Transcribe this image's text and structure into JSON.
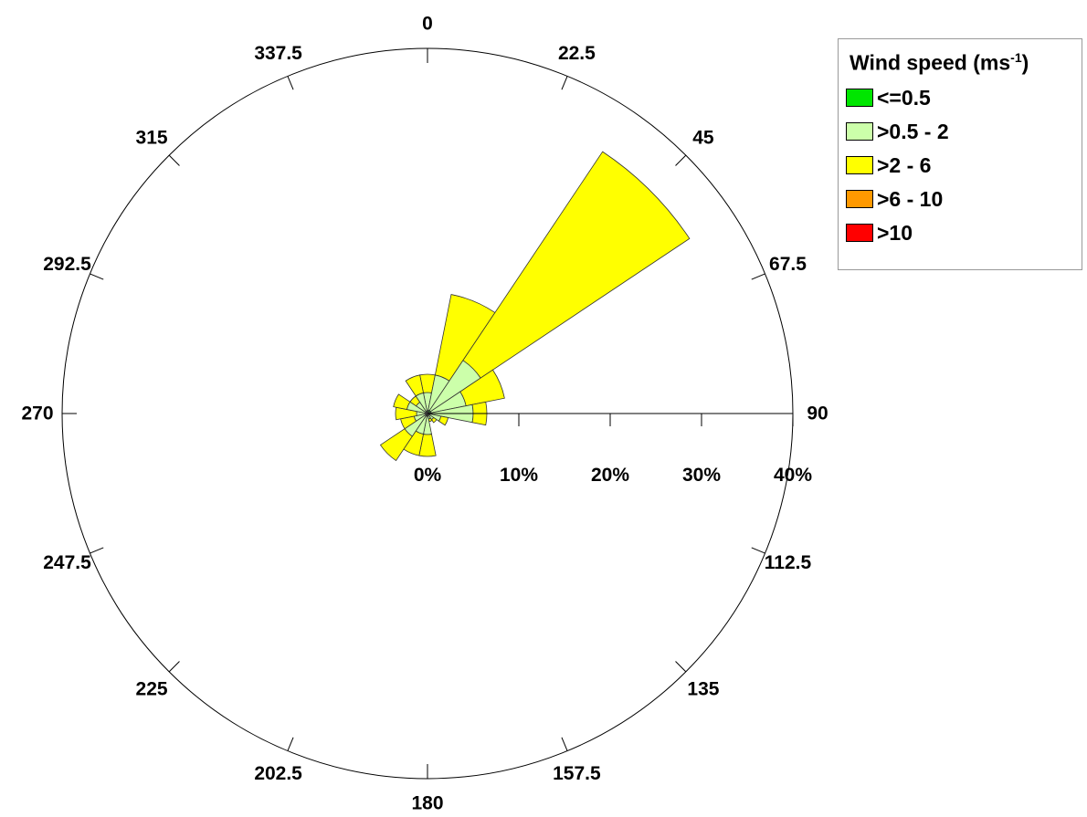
{
  "chart_data": {
    "type": "wind-rose",
    "legend": {
      "title": "Wind speed (ms",
      "title_sup": "-1",
      "title_close": ")",
      "placement": "top-right",
      "bins": [
        {
          "label": "<=0.5",
          "color": "#00e600"
        },
        {
          "label": ">0.5 - 2",
          "color": "#ccffaa"
        },
        {
          "label": ">2 - 6",
          "color": "#ffff00"
        },
        {
          "label": ">6 - 10",
          "color": "#ff9900"
        },
        {
          "label": ">10",
          "color": "#ff0000"
        }
      ]
    },
    "direction_labels": [
      "0",
      "22.5",
      "45",
      "67.5",
      "90",
      "112.5",
      "135",
      "157.5",
      "180",
      "202.5",
      "225",
      "247.5",
      "270",
      "292.5",
      "315",
      "337.5"
    ],
    "radial_axis": {
      "ticks": [
        "0%",
        "10%",
        "20%",
        "30%",
        "40%"
      ],
      "tick_values": [
        0,
        10,
        20,
        30,
        40
      ],
      "max": 40,
      "angle": 90
    },
    "sectors": [
      {
        "direction": 0,
        "cumulative": [
          0.3,
          2.3,
          4.3,
          4.3,
          4.3
        ]
      },
      {
        "direction": 22.5,
        "cumulative": [
          0.4,
          4.3,
          13.3,
          13.3,
          13.3
        ]
      },
      {
        "direction": 45,
        "cumulative": [
          0.4,
          7.0,
          34.5,
          34.5,
          34.5
        ]
      },
      {
        "direction": 67.5,
        "cumulative": [
          0.4,
          4.3,
          8.6,
          8.6,
          8.6
        ]
      },
      {
        "direction": 90,
        "cumulative": [
          0.3,
          5.0,
          6.5,
          6.5,
          6.5
        ]
      },
      {
        "direction": 112.5,
        "cumulative": [
          0.3,
          1.5,
          2.3,
          2.3,
          2.3
        ]
      },
      {
        "direction": 135,
        "cumulative": [
          0.2,
          0.8,
          1.2,
          1.2,
          1.2
        ]
      },
      {
        "direction": 157.5,
        "cumulative": [
          0.2,
          0.6,
          0.9,
          0.9,
          0.9
        ]
      },
      {
        "direction": 180,
        "cumulative": [
          0.3,
          2.3,
          4.7,
          4.7,
          4.7
        ]
      },
      {
        "direction": 202.5,
        "cumulative": [
          0.3,
          2.3,
          4.7,
          4.7,
          4.7
        ]
      },
      {
        "direction": 225,
        "cumulative": [
          0.3,
          3.0,
          6.2,
          6.2,
          6.2
        ]
      },
      {
        "direction": 247.5,
        "cumulative": [
          0.2,
          1.5,
          3.0,
          3.0,
          3.0
        ]
      },
      {
        "direction": 270,
        "cumulative": [
          0.2,
          1.2,
          3.5,
          3.5,
          3.5
        ]
      },
      {
        "direction": 292.5,
        "cumulative": [
          0.2,
          2.3,
          3.8,
          3.8,
          3.8
        ]
      },
      {
        "direction": 315,
        "cumulative": [
          0.2,
          1.5,
          2.3,
          2.3,
          2.3
        ]
      },
      {
        "direction": 337.5,
        "cumulative": [
          0.3,
          2.3,
          4.3,
          4.3,
          4.3
        ]
      }
    ],
    "sector_width_deg": 22.5
  }
}
